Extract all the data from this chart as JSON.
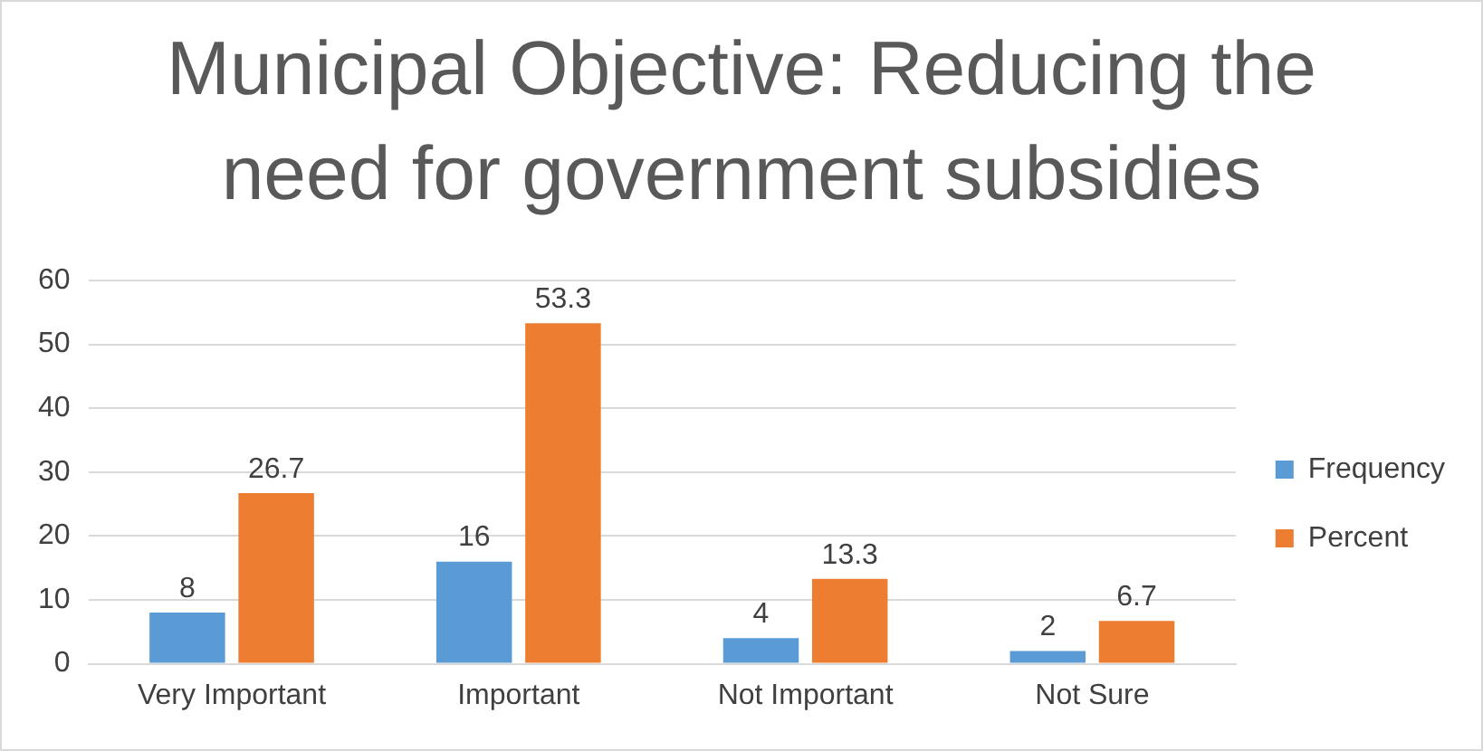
{
  "chart_data": {
    "type": "bar",
    "title": "Municipal Objective: Reducing the need for government subsidies",
    "categories": [
      "Very Important",
      "Important",
      "Not Important",
      "Not Sure"
    ],
    "series": [
      {
        "name": "Frequency",
        "color": "#5b9bd5",
        "values": [
          8,
          16,
          4,
          2
        ]
      },
      {
        "name": "Percent",
        "color": "#ed7d31",
        "values": [
          26.7,
          53.3,
          13.3,
          6.7
        ]
      }
    ],
    "ylim": [
      0,
      60
    ],
    "yticks": [
      0,
      10,
      20,
      30,
      40,
      50,
      60
    ],
    "grid": "y",
    "legend": "right",
    "data_labels": true
  }
}
